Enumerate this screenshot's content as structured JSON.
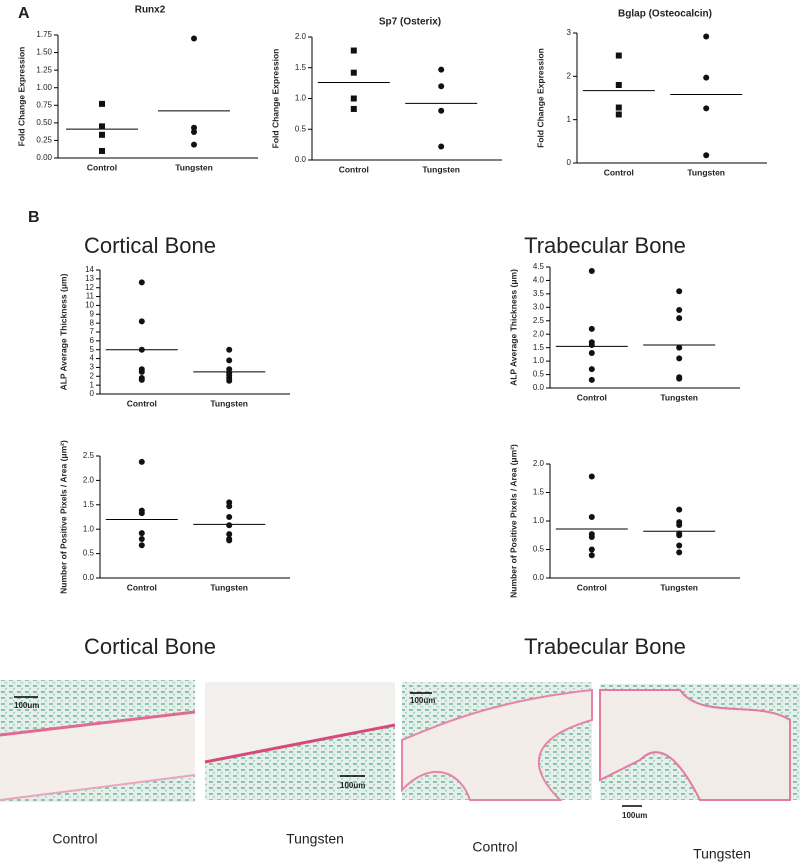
{
  "panel_labels": [
    "A",
    "B"
  ],
  "headings": [
    "Cortical Bone",
    "Trabecular Bone"
  ],
  "images": [
    {
      "caption": "Control",
      "scale": "100um"
    },
    {
      "caption": "Tungsten",
      "scale": "100um"
    },
    {
      "caption": "Control",
      "scale": "100um"
    },
    {
      "caption": "Tungsten",
      "scale": "100um"
    }
  ],
  "chart_data": [
    {
      "type": "scatter",
      "title": "Runx2",
      "ylabel": "Fold Change Expression",
      "categories": [
        "Control",
        "Tungsten"
      ],
      "markers": [
        "square",
        "circle"
      ],
      "values": [
        [
          0.77,
          0.45,
          0.33,
          0.1
        ],
        [
          1.7,
          0.43,
          0.37,
          0.19
        ]
      ],
      "means": [
        0.41,
        0.67
      ],
      "ylim": [
        0,
        1.75
      ],
      "yticks": [
        {
          "value": 0,
          "label": "0.00"
        },
        {
          "value": 0.25,
          "label": "0.25"
        },
        {
          "value": 0.5,
          "label": "0.50"
        },
        {
          "value": 0.75,
          "label": "0.75"
        },
        {
          "value": 1,
          "label": "1.00"
        },
        {
          "value": 1.25,
          "label": "1.25"
        },
        {
          "value": 1.5,
          "label": "1.50"
        },
        {
          "value": 1.75,
          "label": "1.75"
        }
      ]
    },
    {
      "type": "scatter",
      "title": "Sp7 (Osterix)",
      "ylabel": "Fold Change Expression",
      "categories": [
        "Control",
        "Tungsten"
      ],
      "markers": [
        "square",
        "circle"
      ],
      "values": [
        [
          1.78,
          1.42,
          1.0,
          0.83
        ],
        [
          1.47,
          1.2,
          0.8,
          0.22
        ]
      ],
      "means": [
        1.26,
        0.92
      ],
      "ylim": [
        0,
        2
      ],
      "yticks": [
        {
          "value": 0,
          "label": "0.0"
        },
        {
          "value": 0.5,
          "label": "0.5"
        },
        {
          "value": 1,
          "label": "1.0"
        },
        {
          "value": 1.5,
          "label": "1.5"
        },
        {
          "value": 2,
          "label": "2.0"
        }
      ]
    },
    {
      "type": "scatter",
      "title": "Bglap (Osteocalcin)",
      "ylabel": "Fold Change Expression",
      "categories": [
        "Control",
        "Tungsten"
      ],
      "markers": [
        "square",
        "circle"
      ],
      "values": [
        [
          2.48,
          1.8,
          1.28,
          1.12
        ],
        [
          2.92,
          1.97,
          1.26,
          0.18
        ]
      ],
      "means": [
        1.67,
        1.58
      ],
      "ylim": [
        0,
        3
      ],
      "yticks": [
        0,
        1,
        2,
        3
      ]
    },
    {
      "type": "scatter",
      "ylabel": "ALP Average Thickness (μm)",
      "categories": [
        "Control",
        "Tungsten"
      ],
      "markers": [
        "circle",
        "circle"
      ],
      "values": [
        [
          12.6,
          8.2,
          5.0,
          2.8,
          2.5,
          1.8,
          1.6
        ],
        [
          5.0,
          3.8,
          2.8,
          2.4,
          2.1,
          1.8,
          1.5
        ]
      ],
      "means": [
        5.0,
        2.5
      ],
      "ylim": [
        0,
        14
      ],
      "yticks": [
        0,
        1,
        2,
        3,
        4,
        5,
        6,
        7,
        8,
        9,
        10,
        11,
        12,
        13,
        14
      ]
    },
    {
      "type": "scatter",
      "ylabel": "ALP Average Thickness (μm)",
      "categories": [
        "Control",
        "Tungsten"
      ],
      "markers": [
        "circle",
        "circle"
      ],
      "values": [
        [
          4.35,
          2.2,
          1.7,
          1.6,
          1.3,
          0.7,
          0.3
        ],
        [
          3.6,
          2.9,
          2.6,
          1.5,
          1.1,
          0.4,
          0.35
        ]
      ],
      "means": [
        1.55,
        1.6
      ],
      "ylim": [
        0,
        4.5
      ],
      "yticks": [
        {
          "value": 0,
          "label": "0.0"
        },
        {
          "value": 0.5,
          "label": "0.5"
        },
        {
          "value": 1,
          "label": "1.0"
        },
        {
          "value": 1.5,
          "label": "1.5"
        },
        {
          "value": 2,
          "label": "2.0"
        },
        {
          "value": 2.5,
          "label": "2.5"
        },
        {
          "value": 3,
          "label": "3.0"
        },
        {
          "value": 3.5,
          "label": "3.5"
        },
        {
          "value": 4,
          "label": "4.0"
        },
        {
          "value": 4.5,
          "label": "4.5"
        }
      ]
    },
    {
      "type": "scatter",
      "ylabel": "Number of Positive Pixels / Area (μm²)",
      "categories": [
        "Control",
        "Tungsten"
      ],
      "markers": [
        "circle",
        "circle"
      ],
      "values": [
        [
          2.38,
          1.38,
          1.33,
          0.92,
          0.8,
          0.67
        ],
        [
          1.55,
          1.47,
          1.25,
          1.08,
          0.9,
          0.8,
          0.77
        ]
      ],
      "means": [
        1.2,
        1.1
      ],
      "ylim": [
        0,
        2.5
      ],
      "yticks": [
        {
          "value": 0,
          "label": "0.0"
        },
        {
          "value": 0.5,
          "label": "0.5"
        },
        {
          "value": 1,
          "label": "1.0"
        },
        {
          "value": 1.5,
          "label": "1.5"
        },
        {
          "value": 2,
          "label": "2.0"
        },
        {
          "value": 2.5,
          "label": "2.5"
        }
      ]
    },
    {
      "type": "scatter",
      "ylabel": "Number of Positive Pixels / Area (μm²)",
      "categories": [
        "Control",
        "Tungsten"
      ],
      "markers": [
        "circle",
        "circle"
      ],
      "values": [
        [
          1.78,
          1.07,
          0.77,
          0.72,
          0.5,
          0.4
        ],
        [
          1.2,
          0.98,
          0.93,
          0.78,
          0.75,
          0.57,
          0.45
        ]
      ],
      "means": [
        0.86,
        0.82
      ],
      "ylim": [
        0,
        2
      ],
      "yticks": [
        {
          "value": 0,
          "label": "0.0"
        },
        {
          "value": 0.5,
          "label": "0.5"
        },
        {
          "value": 1,
          "label": "1.0"
        },
        {
          "value": 1.5,
          "label": "1.5"
        },
        {
          "value": 2,
          "label": "2.0"
        }
      ]
    }
  ]
}
